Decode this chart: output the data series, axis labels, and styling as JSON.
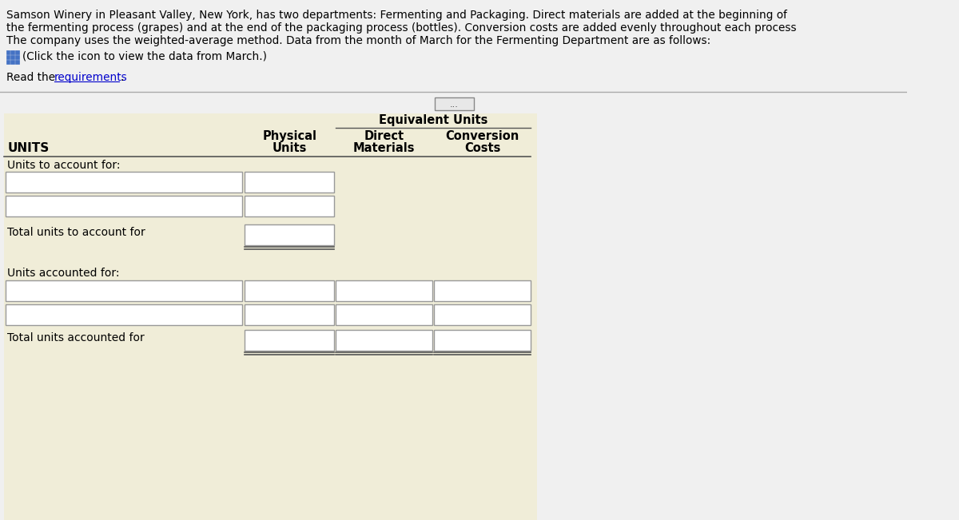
{
  "bg_color": "#f5f5dc",
  "white": "#ffffff",
  "header_text_color": "#000000",
  "body_text_color": "#000000",
  "paragraph_line1": "Samson Winery in Pleasant Valley, New York, has two departments: Fermenting and Packaging. Direct materials are added at the beginning of",
  "paragraph_line2": "the fermenting process (grapes) and at the end of the packaging process (bottles). Conversion costs are added evenly throughout each process",
  "paragraph_line3": "The company uses the weighted-average method. Data from the month of March for the Fermenting Department are as follows:",
  "click_text": "(Click the icon to view the data from March.)",
  "read_prefix": "Read the ",
  "read_link": "requirements",
  "read_suffix": ".",
  "dots_text": "...",
  "col1_header": "Physical",
  "col1_sub": "Units",
  "col2_header": "Direct",
  "col2_sub": "Materials",
  "col3_header": "Conversion",
  "col3_sub": "Costs",
  "equiv_header": "Equivalent Units",
  "units_label": "UNITS",
  "units_to_account_label": "Units to account for:",
  "total_units_account_label": "Total units to account for",
  "units_accounted_label": "Units accounted for:",
  "total_units_accounted_label": "Total units accounted for",
  "page_bg": "#f0f0f0",
  "table_bg": "#f0edd8",
  "input_bg": "#ffffff",
  "input_border": "#999999",
  "link_color": "#0000cc",
  "icon_color": "#4472C4",
  "line_color": "#555555",
  "sep_color": "#aaaaaa"
}
